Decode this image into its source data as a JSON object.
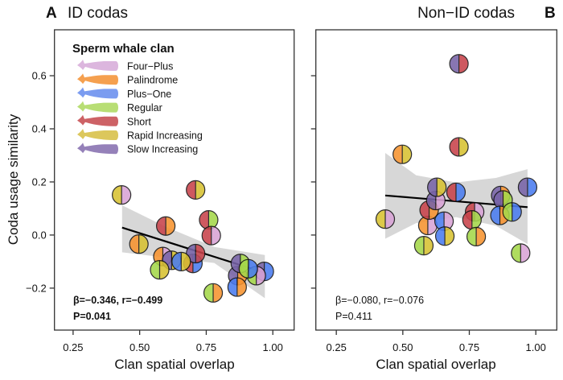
{
  "y_axis_label": "Coda usage similarity",
  "legend": {
    "title": "Sperm whale clan",
    "items": [
      {
        "name": "Four−Plus",
        "color": "#dcb6de",
        "point_color": "#d9a3d6"
      },
      {
        "name": "Palindrome",
        "color": "#f5a04f",
        "point_color": "#f7932f"
      },
      {
        "name": "Plus−One",
        "color": "#7b9cf0",
        "point_color": "#4a7cf0"
      },
      {
        "name": "Regular",
        "color": "#b8de74",
        "point_color": "#a5d84a"
      },
      {
        "name": "Short",
        "color": "#cd6266",
        "point_color": "#c8434b"
      },
      {
        "name": "Rapid Increasing",
        "color": "#dcc75c",
        "point_color": "#d8c232"
      },
      {
        "name": "Slow Increasing",
        "color": "#9581b9",
        "point_color": "#7864a8"
      }
    ]
  },
  "chart_data": [
    {
      "type": "scatter",
      "panel_letter": "A",
      "title": "ID codas",
      "xlabel": "Clan spatial overlap",
      "ylabel": "Coda usage similarity",
      "xlim": [
        0.18,
        1.08
      ],
      "ylim": [
        -0.358,
        0.773
      ],
      "xticks": [
        "0.25",
        "0.50",
        "0.75",
        "1.00"
      ],
      "yticks": [
        "−0.2",
        "0.0",
        "0.2",
        "0.4",
        "0.6"
      ],
      "grid": false,
      "legend_placement": "top-left",
      "stats": {
        "line1": "β=−0.346, r=−0.499",
        "line2": "P=0.041"
      },
      "points": [
        {
          "x": 0.432,
          "y": 0.151,
          "clans": [
            "Rapid Increasing",
            "Four−Plus"
          ]
        },
        {
          "x": 0.71,
          "y": 0.17,
          "clans": [
            "Short",
            "Rapid Increasing"
          ]
        },
        {
          "x": 0.598,
          "y": 0.034,
          "clans": [
            "Short",
            "Palindrome"
          ]
        },
        {
          "x": 0.759,
          "y": 0.057,
          "clans": [
            "Short",
            "Regular"
          ]
        },
        {
          "x": 0.769,
          "y": -0.002,
          "clans": [
            "Short",
            "Four−Plus"
          ]
        },
        {
          "x": 0.497,
          "y": -0.034,
          "clans": [
            "Palindrome",
            "Rapid Increasing"
          ]
        },
        {
          "x": 0.7,
          "y": -0.107,
          "clans": [
            "Short",
            "Plus−One"
          ]
        },
        {
          "x": 0.587,
          "y": -0.081,
          "clans": [
            "Palindrome",
            "Four−Plus"
          ]
        },
        {
          "x": 0.62,
          "y": -0.095,
          "clans": [
            "Slow Increasing",
            "Rapid Increasing"
          ]
        },
        {
          "x": 0.71,
          "y": -0.07,
          "clans": [
            "Slow Increasing",
            "Short"
          ]
        },
        {
          "x": 0.656,
          "y": -0.1,
          "clans": [
            "Plus−One",
            "Rapid Increasing"
          ]
        },
        {
          "x": 0.575,
          "y": -0.131,
          "clans": [
            "Regular",
            "Rapid Increasing"
          ]
        },
        {
          "x": 0.776,
          "y": -0.218,
          "clans": [
            "Regular",
            "Palindrome"
          ]
        },
        {
          "x": 0.868,
          "y": -0.153,
          "clans": [
            "Slow Increasing",
            "Palindrome"
          ]
        },
        {
          "x": 0.866,
          "y": -0.196,
          "clans": [
            "Plus−One",
            "Palindrome"
          ]
        },
        {
          "x": 0.878,
          "y": -0.107,
          "clans": [
            "Slow Increasing",
            "Regular"
          ]
        },
        {
          "x": 0.968,
          "y": -0.137,
          "clans": [
            "Slow Increasing",
            "Plus−One"
          ]
        },
        {
          "x": 0.938,
          "y": -0.153,
          "clans": [
            "Regular",
            "Four−Plus"
          ]
        },
        {
          "x": 0.908,
          "y": -0.127,
          "clans": [
            "Regular",
            "Plus−One"
          ]
        }
      ],
      "fit": {
        "x": [
          0.434,
          0.97
        ],
        "y": [
          0.028,
          -0.142
        ]
      },
      "ci_band": {
        "x": [
          0.434,
          0.6,
          0.78,
          0.97
        ],
        "upper": [
          0.112,
          0.03,
          -0.045,
          -0.075
        ],
        "lower": [
          -0.065,
          -0.085,
          -0.105,
          -0.238
        ]
      }
    },
    {
      "type": "scatter",
      "panel_letter": "B",
      "title": "Non−ID codas",
      "xlabel": "Clan spatial overlap",
      "xlim": [
        0.173,
        1.079
      ],
      "ylim": [
        -0.358,
        0.773
      ],
      "xticks": [
        "0.25",
        "0.50",
        "0.75",
        "1.00"
      ],
      "grid": false,
      "stats": {
        "line1": "β=−0.080, r=−0.076",
        "line2": "P=0.411"
      },
      "points": [
        {
          "x": 0.711,
          "y": 0.645,
          "clans": [
            "Slow Increasing",
            "Short"
          ]
        },
        {
          "x": 0.711,
          "y": 0.332,
          "clans": [
            "Short",
            "Rapid Increasing"
          ]
        },
        {
          "x": 0.498,
          "y": 0.304,
          "clans": [
            "Palindrome",
            "Rapid Increasing"
          ]
        },
        {
          "x": 0.434,
          "y": 0.06,
          "clans": [
            "Rapid Increasing",
            "Four−Plus"
          ]
        },
        {
          "x": 0.594,
          "y": 0.036,
          "clans": [
            "Palindrome",
            "Four−Plus"
          ]
        },
        {
          "x": 0.599,
          "y": 0.094,
          "clans": [
            "Short",
            "Palindrome"
          ]
        },
        {
          "x": 0.624,
          "y": 0.13,
          "clans": [
            "Slow Increasing",
            "Four−Plus"
          ]
        },
        {
          "x": 0.628,
          "y": 0.18,
          "clans": [
            "Slow Increasing",
            "Rapid Increasing"
          ]
        },
        {
          "x": 0.7,
          "y": 0.161,
          "clans": [
            "Short",
            "Plus−One"
          ]
        },
        {
          "x": 0.655,
          "y": 0.052,
          "clans": [
            "Plus−One",
            "Four−Plus"
          ]
        },
        {
          "x": 0.658,
          "y": -0.004,
          "clans": [
            "Plus−One",
            "Rapid Increasing"
          ]
        },
        {
          "x": 0.579,
          "y": -0.04,
          "clans": [
            "Regular",
            "Rapid Increasing"
          ]
        },
        {
          "x": 0.77,
          "y": 0.087,
          "clans": [
            "Short",
            "Four−Plus"
          ]
        },
        {
          "x": 0.76,
          "y": 0.057,
          "clans": [
            "Short",
            "Regular"
          ]
        },
        {
          "x": 0.776,
          "y": -0.006,
          "clans": [
            "Regular",
            "Palindrome"
          ]
        },
        {
          "x": 0.868,
          "y": 0.149,
          "clans": [
            "Slow Increasing",
            "Palindrome"
          ]
        },
        {
          "x": 0.877,
          "y": 0.132,
          "clans": [
            "Slow Increasing",
            "Regular"
          ]
        },
        {
          "x": 0.865,
          "y": 0.074,
          "clans": [
            "Plus−One",
            "Palindrome"
          ]
        },
        {
          "x": 0.911,
          "y": 0.087,
          "clans": [
            "Regular",
            "Plus−One"
          ]
        },
        {
          "x": 0.969,
          "y": 0.18,
          "clans": [
            "Slow Increasing",
            "Plus−One"
          ]
        },
        {
          "x": 0.943,
          "y": -0.068,
          "clans": [
            "Regular",
            "Four−Plus"
          ]
        }
      ],
      "fit": {
        "x": [
          0.434,
          0.969
        ],
        "y": [
          0.149,
          0.105
        ]
      },
      "ci_band": {
        "x": [
          0.434,
          0.55,
          0.7,
          0.85,
          0.969
        ],
        "upper": [
          0.309,
          0.225,
          0.198,
          0.215,
          0.248
        ],
        "lower": [
          -0.014,
          0.045,
          0.067,
          0.035,
          -0.034
        ]
      }
    }
  ]
}
